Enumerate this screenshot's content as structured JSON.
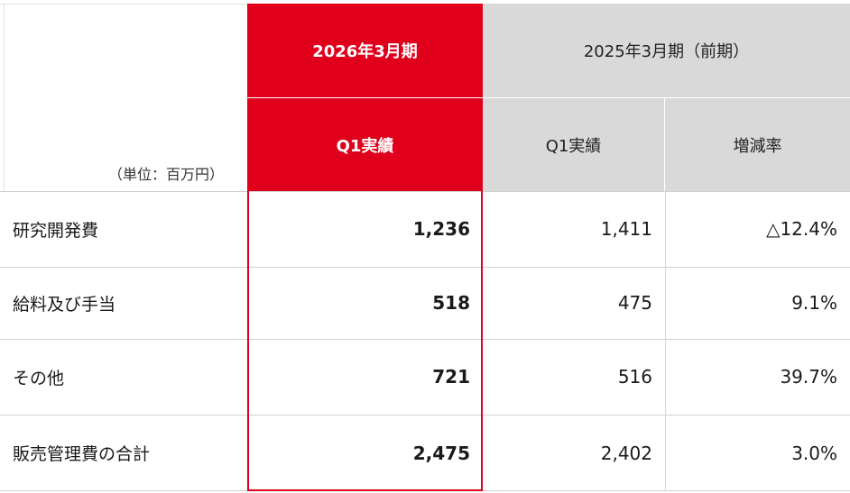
{
  "header": {
    "unit_label": "（単位：百万円）",
    "current_period": "2026年3月期",
    "previous_period": "2025年3月期（前期）",
    "current_sub": "Q1実績",
    "previous_sub": "Q1実績",
    "change_sub": "増減率"
  },
  "colors": {
    "accent_red": "#e0001b",
    "header_gray": "#d9d9d9"
  },
  "rows": [
    {
      "label": "研究開発費",
      "current": "1,236",
      "previous": "1,411",
      "change": "△12.4%"
    },
    {
      "label": "給料及び手当",
      "current": "518",
      "previous": "475",
      "change": "9.1%"
    },
    {
      "label": "その他",
      "current": "721",
      "previous": "516",
      "change": "39.7%"
    },
    {
      "label": "販売管理費の合計",
      "current": "2,475",
      "previous": "2,402",
      "change": "3.0%"
    }
  ]
}
